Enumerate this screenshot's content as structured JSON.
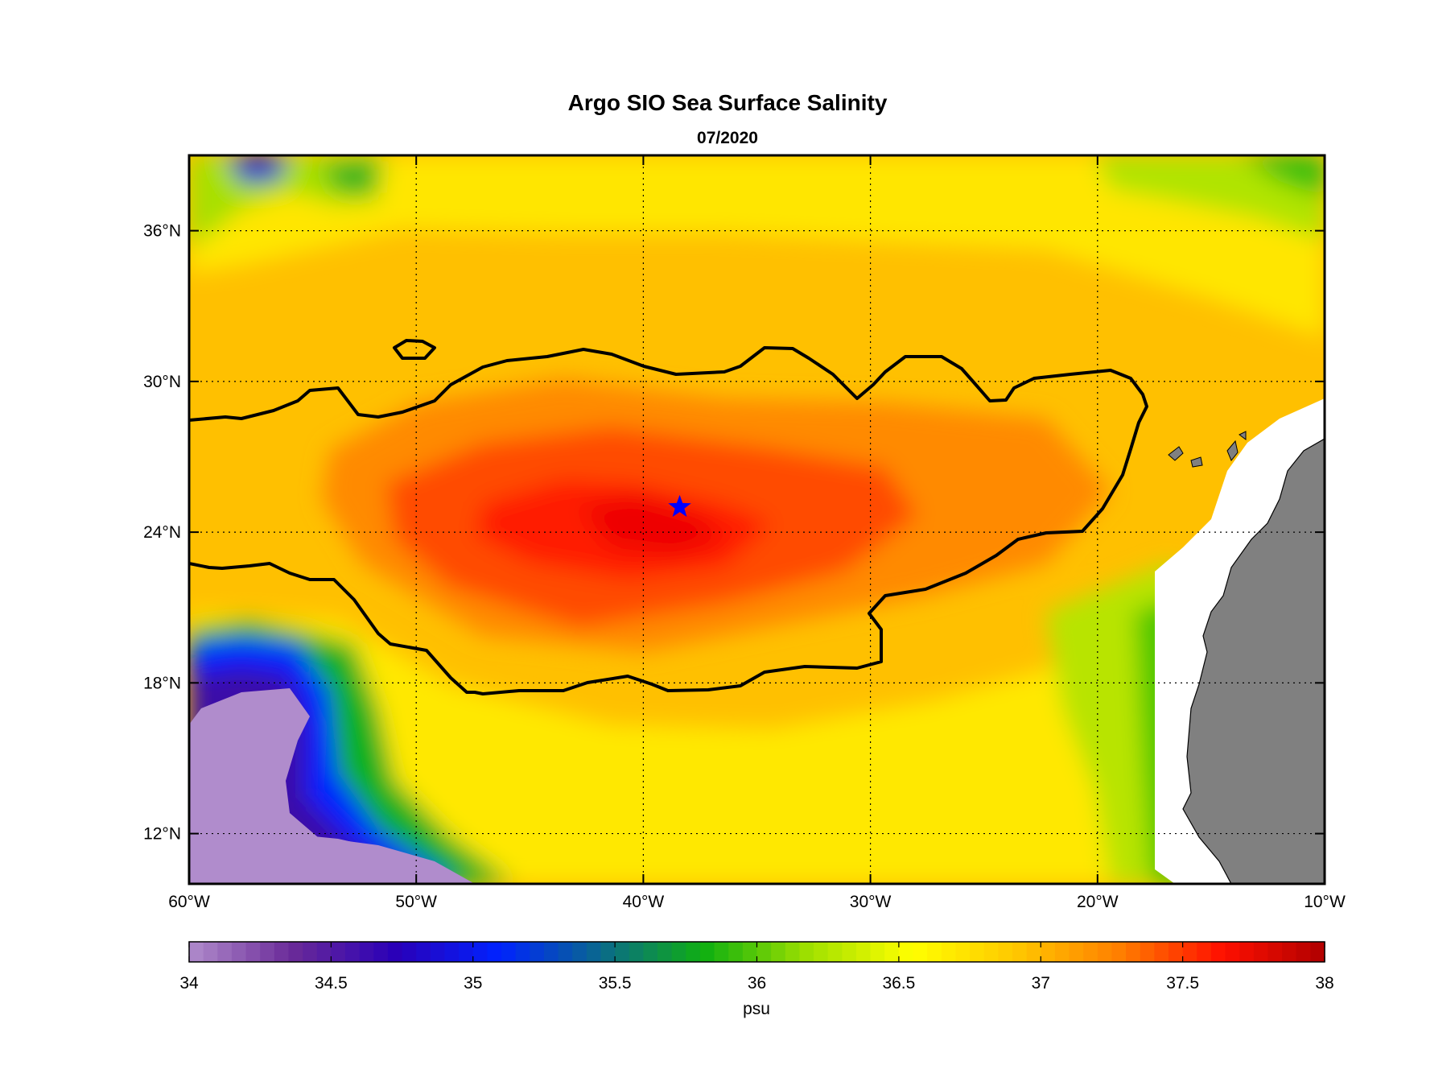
{
  "title": "Argo SIO Sea Surface Salinity",
  "subtitle": "07/2020",
  "map": {
    "lon_range": [
      -60,
      -10
    ],
    "lat_range": [
      10,
      39
    ],
    "lon_ticks": [
      {
        "value": -60,
        "label": "60°W"
      },
      {
        "value": -50,
        "label": "50°W"
      },
      {
        "value": -40,
        "label": "40°W"
      },
      {
        "value": -30,
        "label": "30°W"
      },
      {
        "value": -20,
        "label": "20°W"
      },
      {
        "value": -10,
        "label": "10°W"
      }
    ],
    "lat_ticks": [
      {
        "value": 12,
        "label": "12°N"
      },
      {
        "value": 18,
        "label": "18°N"
      },
      {
        "value": 24,
        "label": "24°N"
      },
      {
        "value": 30,
        "label": "30°N"
      },
      {
        "value": 36,
        "label": "36°N"
      }
    ],
    "grid": "dotted",
    "land_color": "#808080",
    "marker": {
      "lon": -38.4,
      "lat": 25.0,
      "shape": "star",
      "color": "#0000ff"
    },
    "contour_color": "#000000"
  },
  "colorbar": {
    "min": 34,
    "max": 38,
    "unit_label": "psu",
    "ticks": [
      {
        "value": 34,
        "label": "34"
      },
      {
        "value": 34.5,
        "label": "34.5"
      },
      {
        "value": 35,
        "label": "35"
      },
      {
        "value": 35.5,
        "label": "35.5"
      },
      {
        "value": 36,
        "label": "36"
      },
      {
        "value": 36.5,
        "label": "36.5"
      },
      {
        "value": 37,
        "label": "37"
      },
      {
        "value": 37.5,
        "label": "37.5"
      },
      {
        "value": 38,
        "label": "38"
      }
    ],
    "colormap": [
      "#b08ccc",
      "#6a2a98",
      "#2a00b8",
      "#0022ff",
      "#0a6a8a",
      "#10b010",
      "#a0e000",
      "#ffff00",
      "#ffc800",
      "#ff8000",
      "#ff1000",
      "#b00000"
    ]
  }
}
